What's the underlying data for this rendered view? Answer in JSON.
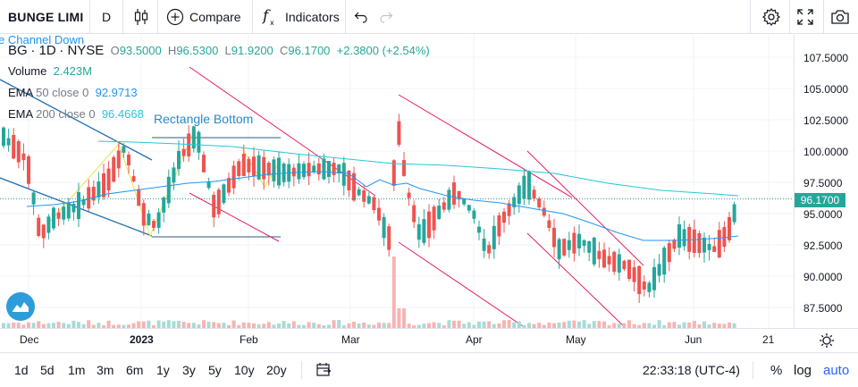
{
  "toolbar": {
    "symbol": "BUNGE LIMI",
    "timeframe": "D",
    "compare_label": "Compare",
    "indicators_label": "Indicators",
    "undo_icon": "undo-icon",
    "redo_icon": "redo-icon",
    "right_icons": [
      "gear-icon",
      "fullscreen-icon",
      "camera-icon"
    ]
  },
  "legend": {
    "cut_label": "e Channel Down",
    "ticker": "BG",
    "interval": "1D",
    "exchange": "NYSE",
    "open_label": "O",
    "open": "93.5000",
    "high_label": "H",
    "high": "96.5300",
    "low_label": "L",
    "low": "91.9200",
    "close_label": "C",
    "close": "96.1700",
    "change": "+2.3800 (+2.54%)",
    "volume_label": "Volume",
    "volume": "2.423M",
    "ema50_label": "EMA",
    "ema50_params": "50 close 0",
    "ema50_value": "92.9713",
    "ema200_label": "EMA",
    "ema200_params": "200 close 0",
    "ema200_value": "96.4668"
  },
  "annotations": {
    "rectangle_bottom": "Rectangle Bottom"
  },
  "price_axis": {
    "labels": [
      "107.5000",
      "105.0000",
      "102.5000",
      "100.0000",
      "97.5000",
      "95.0000",
      "92.5000",
      "90.0000",
      "87.5000"
    ],
    "last_price": "96.1700"
  },
  "time_axis": {
    "labels": [
      "Dec",
      "2023",
      "Feb",
      "Mar",
      "Apr",
      "May",
      "Jun",
      "21"
    ]
  },
  "bottombar": {
    "ranges": [
      "1d",
      "5d",
      "1m",
      "3m",
      "6m",
      "1y",
      "3y",
      "5y",
      "10y",
      "20y"
    ],
    "clock": "22:33:18 (UTC-4)",
    "percent": "%",
    "log": "log",
    "auto": "auto"
  },
  "colors": {
    "up": "#26a69a",
    "down": "#ef5350",
    "ema50": "#2196f3",
    "ema200": "#26c6da",
    "channel": "#e91e63",
    "accent": "#2962ff"
  }
}
